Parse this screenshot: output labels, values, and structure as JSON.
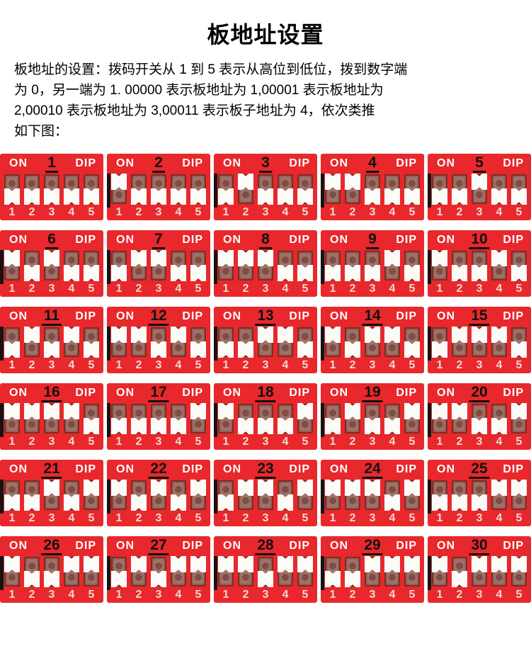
{
  "page": {
    "title": "板地址设置"
  },
  "description_lines": [
    "板地址的设置：拨码开关从 1 到 5 表示从高位到低位，拨到数字端",
    "为 0，另一端为 1. 00000 表示板地址为 1,00001 表示板地址为",
    "2,00010 表示板地址为 3,00011 表示板子地址为 4，依次类推",
    "如下图："
  ],
  "colors": {
    "panel_red": "#e8282c",
    "slot_recess": "#a1726a",
    "slot_dot": "#7d4f44",
    "slider_white": "#fbfbf8",
    "digit_pink": "#f5d9d1",
    "label_white": "#ffffff",
    "number_black": "#111111",
    "edge_black": "#141414"
  },
  "dip_labels": {
    "on": "ON",
    "dip": "DIP",
    "scale": [
      "1",
      "2",
      "3",
      "4",
      "5"
    ]
  },
  "dip_panels": [
    {
      "address": "1",
      "switches": [
        "down",
        "down",
        "down",
        "down",
        "down"
      ],
      "edge_mark": false
    },
    {
      "address": "2",
      "switches": [
        "up",
        "down",
        "down",
        "down",
        "down"
      ],
      "edge_mark": true
    },
    {
      "address": "3",
      "switches": [
        "down",
        "up",
        "down",
        "down",
        "down"
      ],
      "edge_mark": true
    },
    {
      "address": "4",
      "switches": [
        "up",
        "up",
        "down",
        "down",
        "down"
      ],
      "edge_mark": true
    },
    {
      "address": "5",
      "switches": [
        "down",
        "down",
        "up",
        "down",
        "down"
      ],
      "edge_mark": true
    },
    {
      "address": "6",
      "switches": [
        "up",
        "down",
        "up",
        "down",
        "down"
      ],
      "edge_mark": true
    },
    {
      "address": "7",
      "switches": [
        "down",
        "up",
        "up",
        "down",
        "down"
      ],
      "edge_mark": true
    },
    {
      "address": "8",
      "switches": [
        "up",
        "up",
        "up",
        "down",
        "down"
      ],
      "edge_mark": true
    },
    {
      "address": "9",
      "switches": [
        "down",
        "down",
        "down",
        "up",
        "down"
      ],
      "edge_mark": true
    },
    {
      "address": "10",
      "switches": [
        "up",
        "down",
        "down",
        "up",
        "down"
      ],
      "edge_mark": true
    },
    {
      "address": "11",
      "switches": [
        "down",
        "up",
        "down",
        "up",
        "down"
      ],
      "edge_mark": true
    },
    {
      "address": "12",
      "switches": [
        "up",
        "up",
        "down",
        "up",
        "down"
      ],
      "edge_mark": true
    },
    {
      "address": "13",
      "switches": [
        "down",
        "down",
        "up",
        "up",
        "down"
      ],
      "edge_mark": true
    },
    {
      "address": "14",
      "switches": [
        "up",
        "down",
        "up",
        "up",
        "down"
      ],
      "edge_mark": true
    },
    {
      "address": "15",
      "switches": [
        "down",
        "up",
        "up",
        "up",
        "down"
      ],
      "edge_mark": true
    },
    {
      "address": "16",
      "switches": [
        "up",
        "up",
        "up",
        "up",
        "down"
      ],
      "edge_mark": true
    },
    {
      "address": "17",
      "switches": [
        "down",
        "down",
        "down",
        "down",
        "up"
      ],
      "edge_mark": true
    },
    {
      "address": "18",
      "switches": [
        "up",
        "down",
        "down",
        "down",
        "up"
      ],
      "edge_mark": true
    },
    {
      "address": "19",
      "switches": [
        "down",
        "up",
        "down",
        "down",
        "up"
      ],
      "edge_mark": true
    },
    {
      "address": "20",
      "switches": [
        "up",
        "up",
        "down",
        "down",
        "up"
      ],
      "edge_mark": true
    },
    {
      "address": "21",
      "switches": [
        "down",
        "down",
        "up",
        "down",
        "up"
      ],
      "edge_mark": true
    },
    {
      "address": "22",
      "switches": [
        "up",
        "down",
        "up",
        "down",
        "up"
      ],
      "edge_mark": true
    },
    {
      "address": "23",
      "switches": [
        "down",
        "up",
        "up",
        "down",
        "up"
      ],
      "edge_mark": true
    },
    {
      "address": "24",
      "switches": [
        "up",
        "up",
        "up",
        "down",
        "up"
      ],
      "edge_mark": true
    },
    {
      "address": "25",
      "switches": [
        "down",
        "down",
        "down",
        "up",
        "up"
      ],
      "edge_mark": true
    },
    {
      "address": "26",
      "switches": [
        "up",
        "down",
        "down",
        "up",
        "up"
      ],
      "edge_mark": true
    },
    {
      "address": "27",
      "switches": [
        "down",
        "up",
        "down",
        "up",
        "up"
      ],
      "edge_mark": true
    },
    {
      "address": "28",
      "switches": [
        "up",
        "up",
        "down",
        "up",
        "up"
      ],
      "edge_mark": true
    },
    {
      "address": "29",
      "switches": [
        "down",
        "down",
        "up",
        "up",
        "up"
      ],
      "edge_mark": true
    },
    {
      "address": "30",
      "switches": [
        "up",
        "down",
        "up",
        "up",
        "up"
      ],
      "edge_mark": true
    }
  ]
}
